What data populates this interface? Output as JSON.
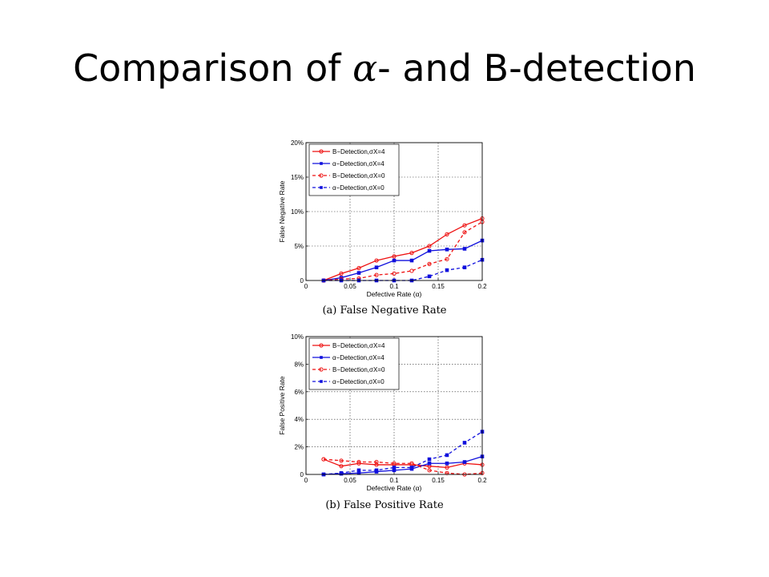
{
  "title": {
    "prefix": "Comparison of ",
    "symbol": "α",
    "suffix": "- and B-detection"
  },
  "colors": {
    "b_detection": "#ee1111",
    "alpha_detection": "#1010dd",
    "grid": "#222222"
  },
  "chart_data": [
    {
      "type": "line",
      "caption": "(a) False Negative Rate",
      "xlabel": "Defective Rate (α)",
      "ylabel": "False Negative Rate",
      "xlim": [
        0,
        0.2
      ],
      "ylim": [
        0,
        20
      ],
      "xticks": [
        0,
        0.05,
        0.1,
        0.15,
        0.2
      ],
      "xtick_labels": [
        "0",
        "0.05",
        "0.1",
        "0.15",
        "0.2"
      ],
      "yticks": [
        0,
        5,
        10,
        15,
        20
      ],
      "ytick_labels": [
        "0",
        "5%",
        "10%",
        "15%",
        "20%"
      ],
      "grid": true,
      "legend_position": "top-left",
      "x": [
        0.02,
        0.04,
        0.06,
        0.08,
        0.1,
        0.12,
        0.14,
        0.16,
        0.18,
        0.2
      ],
      "series": [
        {
          "name": "B−Detection,σX=4",
          "color": "#ee1111",
          "dash": "solid",
          "marker": "circle",
          "values": [
            0,
            1.0,
            1.8,
            2.9,
            3.5,
            4.0,
            5.0,
            6.7,
            8.0,
            9.0
          ]
        },
        {
          "name": "α−Detection,σX=4",
          "color": "#1010dd",
          "dash": "solid",
          "marker": "square",
          "values": [
            0,
            0.4,
            1.1,
            1.9,
            2.9,
            2.9,
            4.3,
            4.5,
            4.6,
            5.8
          ]
        },
        {
          "name": "B−Detection,σX=0",
          "color": "#ee1111",
          "dash": "dashed",
          "marker": "circle",
          "values": [
            0,
            0.2,
            0.3,
            0.8,
            1.0,
            1.4,
            2.4,
            3.1,
            7.0,
            8.5
          ]
        },
        {
          "name": "α−Detection,σX=0",
          "color": "#1010dd",
          "dash": "dashed",
          "marker": "square",
          "values": [
            0,
            0,
            0,
            0,
            0,
            0,
            0.6,
            1.5,
            1.9,
            3.0
          ]
        }
      ]
    },
    {
      "type": "line",
      "caption": "(b) False Positive Rate",
      "xlabel": "Defective Rate (α)",
      "ylabel": "False Positive Rate",
      "xlim": [
        0,
        0.2
      ],
      "ylim": [
        0,
        10
      ],
      "xticks": [
        0,
        0.05,
        0.1,
        0.15,
        0.2
      ],
      "xtick_labels": [
        "0",
        "0.05",
        "0.1",
        "0.15",
        "0.2"
      ],
      "yticks": [
        0,
        2,
        4,
        6,
        8,
        10
      ],
      "ytick_labels": [
        "0",
        "2%",
        "4%",
        "6%",
        "8%",
        "10%"
      ],
      "grid": true,
      "legend_position": "top-left",
      "x": [
        0.02,
        0.04,
        0.06,
        0.08,
        0.1,
        0.12,
        0.14,
        0.16,
        0.18,
        0.2
      ],
      "series": [
        {
          "name": "B−Detection,σX=4",
          "color": "#ee1111",
          "dash": "solid",
          "marker": "circle",
          "values": [
            1.1,
            0.6,
            0.8,
            0.7,
            0.7,
            0.7,
            0.6,
            0.5,
            0.8,
            0.7
          ]
        },
        {
          "name": "α−Detection,σX=4",
          "color": "#1010dd",
          "dash": "solid",
          "marker": "square",
          "values": [
            0,
            0.05,
            0.1,
            0.2,
            0.3,
            0.4,
            0.8,
            0.8,
            0.9,
            1.3
          ]
        },
        {
          "name": "B−Detection,σX=0",
          "color": "#ee1111",
          "dash": "dashed",
          "marker": "circle",
          "values": [
            1.1,
            1.0,
            0.9,
            0.9,
            0.8,
            0.8,
            0.3,
            0.1,
            0.0,
            0.1
          ]
        },
        {
          "name": "α−Detection,σX=0",
          "color": "#1010dd",
          "dash": "dashed",
          "marker": "square",
          "values": [
            0,
            0.1,
            0.3,
            0.3,
            0.5,
            0.5,
            1.1,
            1.4,
            2.3,
            3.1
          ]
        }
      ]
    }
  ]
}
